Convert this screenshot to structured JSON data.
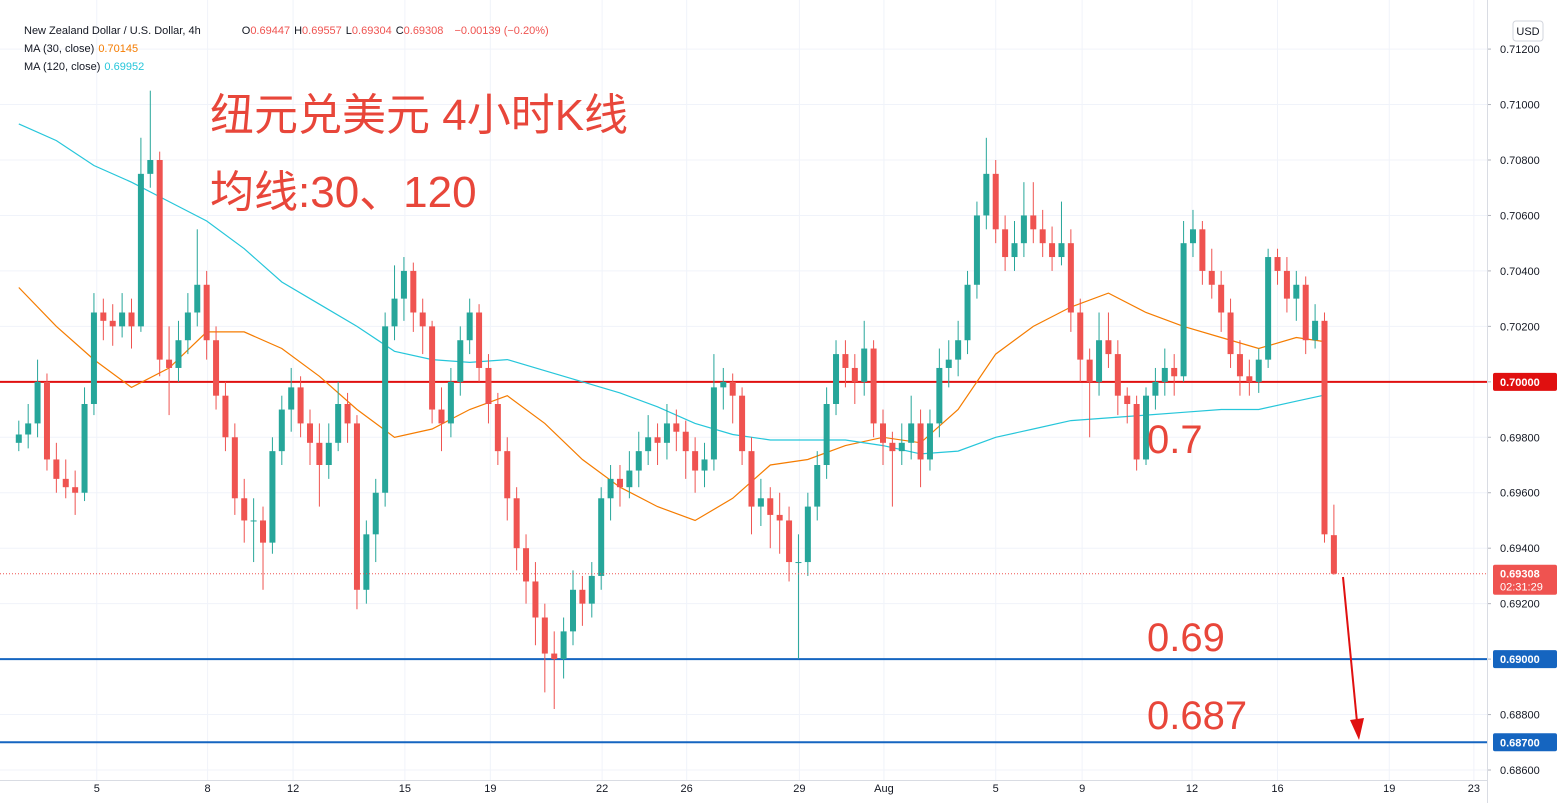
{
  "chart_data": {
    "type": "candlestick",
    "title": "New Zealand Dollar / U.S. Dollar, 4h",
    "ohlc_legend": [
      {
        "key": "O",
        "value": "0.69447"
      },
      {
        "key": "H",
        "value": "0.69557"
      },
      {
        "key": "L",
        "value": "0.69304"
      },
      {
        "key": "C",
        "value": "0.69308"
      }
    ],
    "change": "−0.00139 (−0.20%)",
    "currency": "USD",
    "up_color": "#26a69a",
    "down_color": "#ef5350",
    "grid": true,
    "xlim": [
      -2,
      156.3
    ],
    "ylim": [
      0.68564,
      0.71377
    ],
    "xticks": [
      {
        "value": 8.3,
        "label": "5"
      },
      {
        "value": 20.1,
        "label": "8"
      },
      {
        "value": 29.2,
        "label": "12"
      },
      {
        "value": 41.1,
        "label": "15"
      },
      {
        "value": 50.2,
        "label": "19"
      },
      {
        "value": 62.1,
        "label": "22"
      },
      {
        "value": 71.1,
        "label": "26"
      },
      {
        "value": 83.1,
        "label": "29"
      },
      {
        "value": 92.1,
        "label": "Aug"
      },
      {
        "value": 104.0,
        "label": "5"
      },
      {
        "value": 113.2,
        "label": "9"
      },
      {
        "value": 124.9,
        "label": "12"
      },
      {
        "value": 134.0,
        "label": "16"
      },
      {
        "value": 145.9,
        "label": "19"
      },
      {
        "value": 154.9,
        "label": "23"
      }
    ],
    "yticks": [
      {
        "value": 0.686,
        "label": "0.68600"
      },
      {
        "value": 0.688,
        "label": "0.68800"
      },
      {
        "value": 0.69,
        "label": "0.69000"
      },
      {
        "value": 0.692,
        "label": "0.69200"
      },
      {
        "value": 0.694,
        "label": "0.69400"
      },
      {
        "value": 0.696,
        "label": "0.69600"
      },
      {
        "value": 0.698,
        "label": "0.69800"
      },
      {
        "value": 0.7,
        "label": "0.70000"
      },
      {
        "value": 0.702,
        "label": "0.70200"
      },
      {
        "value": 0.704,
        "label": "0.70400"
      },
      {
        "value": 0.706,
        "label": "0.70600"
      },
      {
        "value": 0.708,
        "label": "0.70800"
      },
      {
        "value": 0.71,
        "label": "0.71000"
      },
      {
        "value": 0.712,
        "label": "0.71200"
      }
    ],
    "candles": [
      [
        0.6978,
        0.6986,
        0.6975,
        0.6981
      ],
      [
        0.6981,
        0.6992,
        0.6976,
        0.6985
      ],
      [
        0.6985,
        0.7008,
        0.698,
        0.7
      ],
      [
        0.7,
        0.7003,
        0.6968,
        0.6972
      ],
      [
        0.6972,
        0.6978,
        0.696,
        0.6965
      ],
      [
        0.6965,
        0.6972,
        0.6958,
        0.6962
      ],
      [
        0.6962,
        0.6968,
        0.6952,
        0.696
      ],
      [
        0.696,
        0.6998,
        0.6957,
        0.6992
      ],
      [
        0.6992,
        0.7032,
        0.6988,
        0.7025
      ],
      [
        0.7025,
        0.703,
        0.7015,
        0.7022
      ],
      [
        0.7022,
        0.7028,
        0.7013,
        0.702
      ],
      [
        0.702,
        0.7032,
        0.7016,
        0.7025
      ],
      [
        0.7025,
        0.703,
        0.7012,
        0.702
      ],
      [
        0.702,
        0.7088,
        0.7018,
        0.7075
      ],
      [
        0.7075,
        0.7105,
        0.707,
        0.708
      ],
      [
        0.708,
        0.7083,
        0.7002,
        0.7008
      ],
      [
        0.7008,
        0.702,
        0.6988,
        0.7005
      ],
      [
        0.7005,
        0.7022,
        0.7,
        0.7015
      ],
      [
        0.7015,
        0.7032,
        0.701,
        0.7025
      ],
      [
        0.7025,
        0.7055,
        0.702,
        0.7035
      ],
      [
        0.7035,
        0.704,
        0.7008,
        0.7015
      ],
      [
        0.7015,
        0.702,
        0.699,
        0.6995
      ],
      [
        0.6995,
        0.7,
        0.6975,
        0.698
      ],
      [
        0.698,
        0.6985,
        0.6952,
        0.6958
      ],
      [
        0.6958,
        0.6965,
        0.6942,
        0.695
      ],
      [
        0.695,
        0.6958,
        0.6935,
        0.695
      ],
      [
        0.695,
        0.6955,
        0.6925,
        0.6942
      ],
      [
        0.6942,
        0.698,
        0.6938,
        0.6975
      ],
      [
        0.6975,
        0.6995,
        0.697,
        0.699
      ],
      [
        0.699,
        0.7005,
        0.6982,
        0.6998
      ],
      [
        0.6998,
        0.7002,
        0.698,
        0.6985
      ],
      [
        0.6985,
        0.699,
        0.697,
        0.6978
      ],
      [
        0.6978,
        0.6985,
        0.6955,
        0.697
      ],
      [
        0.697,
        0.6985,
        0.6965,
        0.6978
      ],
      [
        0.6978,
        0.7,
        0.6975,
        0.6992
      ],
      [
        0.6992,
        0.6996,
        0.6978,
        0.6985
      ],
      [
        0.6985,
        0.6988,
        0.6918,
        0.6925
      ],
      [
        0.6925,
        0.695,
        0.692,
        0.6945
      ],
      [
        0.6945,
        0.6965,
        0.6935,
        0.696
      ],
      [
        0.696,
        0.7025,
        0.6955,
        0.702
      ],
      [
        0.702,
        0.7042,
        0.7015,
        0.703
      ],
      [
        0.703,
        0.7045,
        0.7022,
        0.704
      ],
      [
        0.704,
        0.7043,
        0.7018,
        0.7025
      ],
      [
        0.7025,
        0.703,
        0.701,
        0.702
      ],
      [
        0.702,
        0.7022,
        0.6985,
        0.699
      ],
      [
        0.699,
        0.6998,
        0.6975,
        0.6985
      ],
      [
        0.6985,
        0.7005,
        0.698,
        0.7
      ],
      [
        0.7,
        0.702,
        0.6995,
        0.7015
      ],
      [
        0.7015,
        0.703,
        0.701,
        0.7025
      ],
      [
        0.7025,
        0.7028,
        0.7,
        0.7005
      ],
      [
        0.7005,
        0.701,
        0.6985,
        0.6992
      ],
      [
        0.6992,
        0.6996,
        0.697,
        0.6975
      ],
      [
        0.6975,
        0.698,
        0.695,
        0.6958
      ],
      [
        0.6958,
        0.6962,
        0.6932,
        0.694
      ],
      [
        0.694,
        0.6945,
        0.692,
        0.6928
      ],
      [
        0.6928,
        0.6935,
        0.6905,
        0.6915
      ],
      [
        0.6915,
        0.692,
        0.6888,
        0.6902
      ],
      [
        0.6902,
        0.691,
        0.6882,
        0.69
      ],
      [
        0.69,
        0.6915,
        0.6893,
        0.691
      ],
      [
        0.691,
        0.6932,
        0.6905,
        0.6925
      ],
      [
        0.6925,
        0.693,
        0.6912,
        0.692
      ],
      [
        0.692,
        0.6935,
        0.6915,
        0.693
      ],
      [
        0.693,
        0.6962,
        0.6925,
        0.6958
      ],
      [
        0.6958,
        0.697,
        0.695,
        0.6965
      ],
      [
        0.6965,
        0.697,
        0.6955,
        0.6962
      ],
      [
        0.6962,
        0.6975,
        0.6958,
        0.6968
      ],
      [
        0.6968,
        0.6982,
        0.6962,
        0.6975
      ],
      [
        0.6975,
        0.6988,
        0.697,
        0.698
      ],
      [
        0.698,
        0.6985,
        0.697,
        0.6978
      ],
      [
        0.6978,
        0.6992,
        0.6972,
        0.6985
      ],
      [
        0.6985,
        0.699,
        0.6975,
        0.6982
      ],
      [
        0.6982,
        0.6986,
        0.6965,
        0.6975
      ],
      [
        0.6975,
        0.698,
        0.696,
        0.6968
      ],
      [
        0.6968,
        0.6978,
        0.6962,
        0.6972
      ],
      [
        0.6972,
        0.701,
        0.6968,
        0.6998
      ],
      [
        0.6998,
        0.7005,
        0.699,
        0.7
      ],
      [
        0.7,
        0.7003,
        0.6985,
        0.6995
      ],
      [
        0.6995,
        0.6998,
        0.697,
        0.6975
      ],
      [
        0.6975,
        0.698,
        0.6945,
        0.6955
      ],
      [
        0.6955,
        0.6965,
        0.6948,
        0.6958
      ],
      [
        0.6958,
        0.6962,
        0.694,
        0.6952
      ],
      [
        0.6952,
        0.696,
        0.6938,
        0.695
      ],
      [
        0.695,
        0.6955,
        0.6928,
        0.6935
      ],
      [
        0.6935,
        0.6945,
        0.69,
        0.6935
      ],
      [
        0.6935,
        0.696,
        0.693,
        0.6955
      ],
      [
        0.6955,
        0.6975,
        0.695,
        0.697
      ],
      [
        0.697,
        0.6998,
        0.6965,
        0.6992
      ],
      [
        0.6992,
        0.7015,
        0.6988,
        0.701
      ],
      [
        0.701,
        0.7015,
        0.6998,
        0.7005
      ],
      [
        0.7005,
        0.701,
        0.6992,
        0.7
      ],
      [
        0.7,
        0.7022,
        0.6995,
        0.7012
      ],
      [
        0.7012,
        0.7015,
        0.698,
        0.6985
      ],
      [
        0.6985,
        0.699,
        0.697,
        0.6978
      ],
      [
        0.6978,
        0.6982,
        0.6955,
        0.6975
      ],
      [
        0.6975,
        0.6985,
        0.697,
        0.6978
      ],
      [
        0.6978,
        0.6995,
        0.6972,
        0.6985
      ],
      [
        0.6985,
        0.699,
        0.6962,
        0.6972
      ],
      [
        0.6972,
        0.699,
        0.6968,
        0.6985
      ],
      [
        0.6985,
        0.7012,
        0.698,
        0.7005
      ],
      [
        0.7005,
        0.7015,
        0.6998,
        0.7008
      ],
      [
        0.7008,
        0.7022,
        0.7002,
        0.7015
      ],
      [
        0.7015,
        0.704,
        0.701,
        0.7035
      ],
      [
        0.7035,
        0.7065,
        0.703,
        0.706
      ],
      [
        0.706,
        0.7088,
        0.7055,
        0.7075
      ],
      [
        0.7075,
        0.708,
        0.705,
        0.7055
      ],
      [
        0.7055,
        0.706,
        0.704,
        0.7045
      ],
      [
        0.7045,
        0.7058,
        0.704,
        0.705
      ],
      [
        0.705,
        0.7072,
        0.7045,
        0.706
      ],
      [
        0.706,
        0.7072,
        0.705,
        0.7055
      ],
      [
        0.7055,
        0.7062,
        0.7045,
        0.705
      ],
      [
        0.705,
        0.7056,
        0.704,
        0.7045
      ],
      [
        0.7045,
        0.7065,
        0.7042,
        0.705
      ],
      [
        0.705,
        0.7055,
        0.7018,
        0.7025
      ],
      [
        0.7025,
        0.703,
        0.7,
        0.7008
      ],
      [
        0.7008,
        0.7012,
        0.698,
        0.7
      ],
      [
        0.7,
        0.7025,
        0.6995,
        0.7015
      ],
      [
        0.7015,
        0.7025,
        0.7005,
        0.701
      ],
      [
        0.701,
        0.7015,
        0.6988,
        0.6995
      ],
      [
        0.6995,
        0.6998,
        0.6985,
        0.6992
      ],
      [
        0.6992,
        0.6995,
        0.6968,
        0.6972
      ],
      [
        0.6972,
        0.6998,
        0.697,
        0.6995
      ],
      [
        0.6995,
        0.7005,
        0.699,
        0.7
      ],
      [
        0.7,
        0.7012,
        0.6995,
        0.7005
      ],
      [
        0.7005,
        0.701,
        0.6995,
        0.7002
      ],
      [
        0.7002,
        0.7058,
        0.7,
        0.705
      ],
      [
        0.705,
        0.7062,
        0.7045,
        0.7055
      ],
      [
        0.7055,
        0.7058,
        0.7035,
        0.704
      ],
      [
        0.704,
        0.7048,
        0.703,
        0.7035
      ],
      [
        0.7035,
        0.704,
        0.7018,
        0.7025
      ],
      [
        0.7025,
        0.703,
        0.7005,
        0.701
      ],
      [
        0.701,
        0.7015,
        0.6995,
        0.7002
      ],
      [
        0.7002,
        0.7008,
        0.6995,
        0.7
      ],
      [
        0.7,
        0.7012,
        0.6996,
        0.7008
      ],
      [
        0.7008,
        0.7048,
        0.7005,
        0.7045
      ],
      [
        0.7045,
        0.7048,
        0.7035,
        0.704
      ],
      [
        0.704,
        0.7045,
        0.7025,
        0.703
      ],
      [
        0.703,
        0.704,
        0.7022,
        0.7035
      ],
      [
        0.7035,
        0.7038,
        0.701,
        0.7015
      ],
      [
        0.7015,
        0.7028,
        0.7012,
        0.7022
      ],
      [
        0.7022,
        0.7025,
        0.6942,
        0.6945
      ],
      [
        0.69447,
        0.69557,
        0.69304,
        0.69308
      ]
    ],
    "series": [
      {
        "name": "MA (30, close)",
        "value_label": "0.70145",
        "color": "#f57c00",
        "x": [
          0,
          4,
          8,
          12,
          16,
          20,
          24,
          28,
          32,
          36,
          40,
          44,
          48,
          52,
          56,
          60,
          64,
          68,
          72,
          76,
          80,
          84,
          88,
          92,
          96,
          100,
          104,
          108,
          112,
          116,
          120,
          124,
          128,
          132,
          136,
          139
        ],
        "values": [
          0.7034,
          0.702,
          0.7008,
          0.6998,
          0.7005,
          0.7018,
          0.7018,
          0.7012,
          0.7002,
          0.699,
          0.698,
          0.6983,
          0.699,
          0.6995,
          0.6985,
          0.6972,
          0.6962,
          0.6955,
          0.695,
          0.6958,
          0.697,
          0.6972,
          0.6977,
          0.698,
          0.6978,
          0.699,
          0.701,
          0.702,
          0.7027,
          0.7032,
          0.7025,
          0.702,
          0.7016,
          0.7012,
          0.7016,
          0.70145
        ]
      },
      {
        "name": "MA (120, close)",
        "value_label": "0.69952",
        "color": "#26c6da",
        "x": [
          0,
          4,
          8,
          12,
          16,
          20,
          24,
          28,
          32,
          36,
          40,
          44,
          48,
          52,
          56,
          60,
          64,
          68,
          72,
          76,
          80,
          84,
          88,
          92,
          96,
          100,
          104,
          108,
          112,
          116,
          120,
          124,
          128,
          132,
          136,
          139
        ],
        "values": [
          0.7093,
          0.7087,
          0.7078,
          0.7072,
          0.7065,
          0.7058,
          0.7048,
          0.7036,
          0.7028,
          0.702,
          0.7011,
          0.7008,
          0.7007,
          0.7008,
          0.7004,
          0.7,
          0.6996,
          0.6991,
          0.6985,
          0.6981,
          0.6979,
          0.6979,
          0.6979,
          0.6977,
          0.6974,
          0.6975,
          0.698,
          0.6983,
          0.6986,
          0.6987,
          0.6988,
          0.6989,
          0.699,
          0.699,
          0.6993,
          0.69952
        ]
      }
    ],
    "levels": [
      {
        "value": 0.7,
        "label": "0.70000",
        "color": "#e01010"
      },
      {
        "value": 0.69,
        "label": "0.69000",
        "color": "#1565c0"
      },
      {
        "value": 0.687,
        "label": "0.68700",
        "color": "#1565c0"
      }
    ],
    "last_price": {
      "value": 0.69308,
      "label": "0.69308",
      "countdown": "02:31:29",
      "color": "#ef5350"
    },
    "annotations": [
      {
        "text": "纽元兑美元 4小时K线"
      },
      {
        "text": "均线:30、120"
      },
      {
        "text": "0.7"
      },
      {
        "text": "0.69"
      },
      {
        "text": "0.687"
      }
    ]
  }
}
